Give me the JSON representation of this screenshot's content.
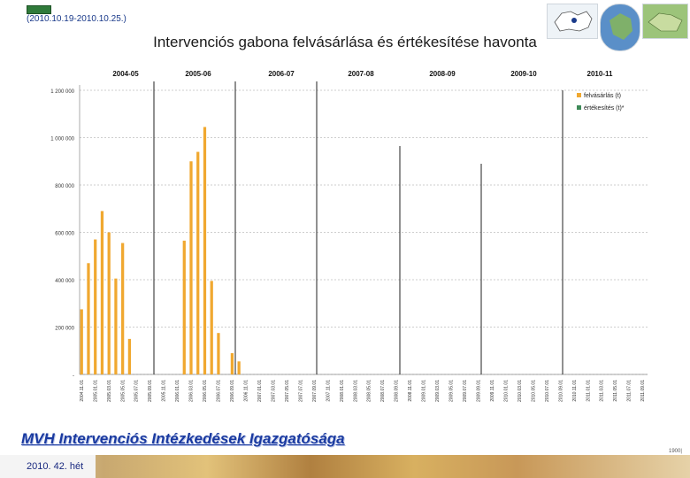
{
  "header": {
    "date_range": "(2010.10.19-2010.10.25.)",
    "title": "Intervenciós gabona felvásárlása és értékesítése havonta"
  },
  "footer": {
    "org_title": "MVH Intervenciós Intézkedések Igazgatósága",
    "week": "2010. 42. hét",
    "page_num": "1900|"
  },
  "colors": {
    "purchase": "#f0a830",
    "sale": "#3e8a58",
    "grid": "#bfbfbf",
    "title_blue": "#1a3aa0"
  },
  "chart_data": {
    "type": "bar",
    "title": "Intervenciós gabona felvásárlása és értékesítése havonta",
    "periods": [
      "2004-05",
      "2005-06",
      "2006-07",
      "2007-08",
      "2008-09",
      "2009-10",
      "2010-11"
    ],
    "y_ticks": [
      "1 200 000",
      "1 000 000",
      "800 000",
      "600 000",
      "400 000",
      "200 000",
      "-"
    ],
    "ylim": [
      0,
      1200000
    ],
    "grid": true,
    "legend_position": "top-right",
    "categories": [
      "2004.11.",
      "2004.12.",
      "2005.01.",
      "2005.02.",
      "2005.03.",
      "2005.04.",
      "2005.05.",
      "2005.06.",
      "2005.07.",
      "2005.08.",
      "2005.09.",
      "2005.10.",
      "2005.11.",
      "2005.12.",
      "2006.01.",
      "2006.02.",
      "2006.03.",
      "2006.04.",
      "2006.05.",
      "2006.06.",
      "2006.07.",
      "2006.08.",
      "2006.09.",
      "2006.10.",
      "2006.11.",
      "2006.12.",
      "2007.01.",
      "2007.02.",
      "2007.03.",
      "2007.04.",
      "2007.05.",
      "2007.06.",
      "2007.07.",
      "2007.08.",
      "2007.09.",
      "2007.10.",
      "2007.11.",
      "2007.12.",
      "2008.01.",
      "2008.02.",
      "2008.03.",
      "2008.04.",
      "2008.05.",
      "2008.06.",
      "2008.07.",
      "2008.08.",
      "2008.09.",
      "2008.10.",
      "2008.11.",
      "2008.12.",
      "2009.01.",
      "2009.02.",
      "2009.03.",
      "2009.04.",
      "2009.05.",
      "2009.06.",
      "2009.07.",
      "2009.08.",
      "2009.09.",
      "2009.10.",
      "2009.11.",
      "2009.12.",
      "2010.01.",
      "2010.02.",
      "2010.03.",
      "2010.04.",
      "2010.05.",
      "2010.06.",
      "2010.07.",
      "2010.08.",
      "2010.09.",
      "2010.10.",
      "2010.11.",
      "2010.12.",
      "2011.01.",
      "2011.02.",
      "2011.03.",
      "2011.04.",
      "2011.05.",
      "2011.06.",
      "2011.07.",
      "2011.08.",
      "2011.09."
    ],
    "tick_labels": [
      "2004.11.01",
      "2005.01.01",
      "2005.03.01",
      "2005.05.01",
      "2005.07.01",
      "2005.09.01",
      "2005.11.01",
      "2006.01.01",
      "2006.03.01",
      "2006.05.01",
      "2006.07.01",
      "2006.09.01",
      "2006.11.01",
      "2007.01.01",
      "2007.03.01",
      "2007.05.01",
      "2007.07.01",
      "2007.09.01",
      "2007.11.01",
      "2008.01.01",
      "2008.03.01",
      "2008.05.01",
      "2008.07.01",
      "2008.09.01",
      "2008.11.01",
      "2009.01.01",
      "2009.03.01",
      "2009.05.01",
      "2009.07.01",
      "2009.09.01",
      "2009.11.01",
      "2010.01.01",
      "2010.03.01",
      "2010.05.01",
      "2010.07.01",
      "2010.09.01",
      "2010.11.01",
      "2011.01.01",
      "2011.03.01",
      "2011.05.01",
      "2011.07.01",
      "2011.09.01"
    ],
    "series": [
      {
        "name": "felvásárlás (t)",
        "color": "#f0a830",
        "values": [
          275000,
          470000,
          570000,
          690000,
          600000,
          405000,
          555000,
          150000,
          0,
          0,
          0,
          0,
          0,
          0,
          0,
          565000,
          900000,
          940000,
          1045000,
          395000,
          175000,
          0,
          90000,
          55000,
          0,
          0,
          0,
          0,
          0,
          0,
          0,
          0,
          0,
          0,
          0,
          0,
          0,
          0,
          0,
          0,
          0,
          0,
          0,
          0,
          0,
          0,
          0,
          0,
          0,
          0,
          0,
          0,
          0,
          0,
          0,
          0,
          0,
          0,
          0,
          0,
          0,
          0,
          0,
          0,
          0,
          0,
          0,
          0,
          0,
          0,
          0,
          0,
          0,
          0,
          0,
          0,
          0,
          0,
          0,
          0,
          0,
          0,
          0
        ]
      },
      {
        "name": "értékesítés (t)*",
        "color": "#3e8a58",
        "values": [
          0,
          0,
          0,
          0,
          0,
          0,
          0,
          0,
          0,
          0,
          0,
          0,
          0,
          0,
          0,
          0,
          0,
          0,
          0,
          0,
          0,
          0,
          0,
          0,
          0,
          0,
          0,
          0,
          0,
          0,
          0,
          0,
          0,
          0,
          0,
          0,
          0,
          0,
          0,
          0,
          0,
          0,
          0,
          0,
          0,
          0,
          0,
          0,
          0,
          0,
          0,
          0,
          0,
          0,
          0,
          0,
          0,
          0,
          0,
          0,
          0,
          0,
          0,
          0,
          0,
          0,
          0,
          0,
          0,
          0,
          0,
          0,
          0,
          0,
          0,
          0,
          0,
          0,
          0,
          0,
          0,
          0,
          0
        ]
      }
    ]
  }
}
